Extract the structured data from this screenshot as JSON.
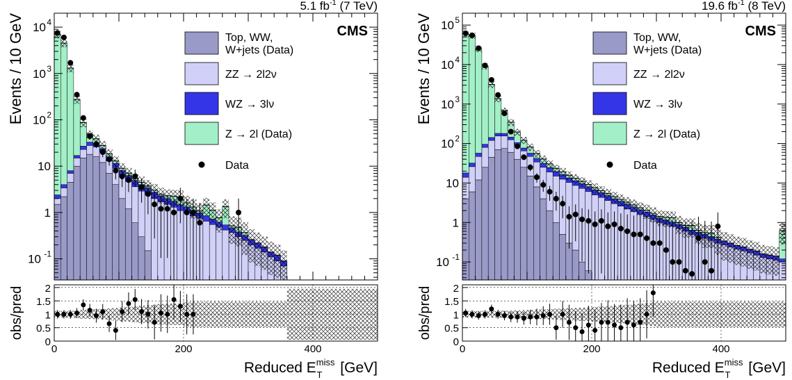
{
  "colors": {
    "top_ww_wjets": "#9a9ac8",
    "zz": "#d0d0f8",
    "wz": "#3535e8",
    "z_2l": "#a3f0c8",
    "data": "#000000",
    "uncertainty_hatch": "#000000"
  },
  "chart_data": [
    {
      "type": "bar",
      "stacked": true,
      "log_y": true,
      "header": "5.1 fb",
      "header_sup": "-1",
      "header_tail": " (7 TeV)",
      "label": "CMS",
      "ylabel": "Events / 10 GeV",
      "xlabel_main": "Reduced E",
      "xlabel_sup": "miss",
      "xlabel_sub": "T",
      "xlabel_unit": " [GeV]",
      "xlim": [
        0,
        500
      ],
      "ylim": [
        0.035,
        20000
      ],
      "yticks": [
        {
          "v": 0.1,
          "base": "10",
          "exp": "-1"
        },
        {
          "v": 1,
          "base": "1",
          "exp": ""
        },
        {
          "v": 10,
          "base": "10",
          "exp": ""
        },
        {
          "v": 100,
          "base": "10",
          "exp": "2"
        },
        {
          "v": 1000,
          "base": "10",
          "exp": "3"
        },
        {
          "v": 10000,
          "base": "10",
          "exp": "4"
        }
      ],
      "xticks": [
        0,
        200,
        400
      ],
      "ratio_ylabel": "obs/pred",
      "ratio_yticks": [
        "0",
        "0.5",
        "1",
        "1.5",
        "2"
      ],
      "ratio_ylim": [
        0,
        2.1
      ],
      "bin_width": 10,
      "series": [
        {
          "name": "Top, WW, W+jets (Data)",
          "key": "top",
          "values": [
            1.5,
            2.2,
            4.5,
            10,
            15,
            18,
            16,
            12,
            7,
            4,
            2,
            1.2,
            0.6,
            0.3,
            0.15,
            0,
            0,
            0,
            0,
            0,
            0,
            0,
            0,
            0,
            0,
            0,
            0,
            0,
            0,
            0,
            0,
            0,
            0,
            0,
            0,
            0,
            0,
            0,
            0,
            0,
            0,
            0,
            0,
            0,
            0,
            0,
            0,
            0,
            0,
            0
          ]
        },
        {
          "name": "ZZ → 2l2ν",
          "key": "zz",
          "values": [
            0.5,
            1.2,
            2.5,
            5,
            8,
            10,
            10,
            8,
            6,
            5,
            4,
            3.5,
            3,
            2.6,
            2.3,
            2,
            1.7,
            1.5,
            1.3,
            1.1,
            1,
            0.85,
            0.75,
            0.65,
            0.55,
            0.48,
            0.42,
            0.37,
            0.3,
            0.25,
            0.2,
            0.17,
            0.14,
            0.11,
            0.09,
            0.07,
            0,
            0,
            0,
            0,
            0,
            0,
            0,
            0,
            0,
            0,
            0,
            0,
            0,
            0,
            0
          ]
        },
        {
          "name": "WZ → 3lν",
          "key": "wz",
          "values": [
            0.4,
            0.6,
            1,
            2,
            4,
            5,
            5,
            4,
            3,
            2.5,
            2,
            1.6,
            1.3,
            1.1,
            0.9,
            0.75,
            0.6,
            0.5,
            0.45,
            0.38,
            0.32,
            0.27,
            0.23,
            0.2,
            0.17,
            0.14,
            0.12,
            0.1,
            0.08,
            0.07,
            0.06,
            0.05,
            0.04,
            0.03,
            0.03,
            0.02,
            0,
            0,
            0,
            0,
            0,
            0,
            0,
            0,
            0,
            0,
            0,
            0,
            0,
            0,
            0
          ]
        },
        {
          "name": "Z → 2l (Data)",
          "key": "z",
          "values": [
            7000,
            4500,
            1300,
            260,
            60,
            15,
            8,
            4,
            2.5,
            1.5,
            1,
            0.8,
            0.6,
            0.5,
            0.4,
            0.3,
            0.2,
            0.3,
            0.5,
            0.7,
            0.3,
            0.2,
            0.1,
            0.6,
            0.4,
            0.15,
            0.8,
            0.05,
            0.1,
            0.05,
            0,
            0,
            0,
            0,
            0,
            0,
            0,
            0,
            0,
            0,
            0,
            0,
            0,
            0,
            0,
            0,
            0,
            0,
            0,
            0,
            0
          ]
        }
      ],
      "data_points": {
        "name": "Data",
        "x": [
          5,
          15,
          25,
          35,
          45,
          55,
          65,
          75,
          85,
          95,
          105,
          115,
          125,
          135,
          145,
          155,
          165,
          175,
          185,
          195,
          205,
          215,
          225,
          235,
          245,
          255,
          265,
          275,
          285
        ],
        "y": [
          7500,
          6000,
          1700,
          350,
          110,
          45,
          30,
          20,
          14,
          8,
          6,
          5,
          6,
          3.5,
          2.5,
          1.5,
          1.2,
          1.2,
          1.0,
          2.0,
          1.0,
          1.0,
          0.6,
          0,
          0,
          0,
          0,
          0,
          1.0
        ],
        "ratio": [
          1.0,
          1.0,
          1.0,
          1.05,
          1.35,
          1.15,
          0.95,
          1.1,
          0.65,
          0.4,
          1.1,
          1.4,
          1.55,
          1.1,
          1.0,
          0.7,
          1.05,
          1.0,
          1.55,
          1.3,
          1.0,
          1.0,
          0,
          0,
          0,
          0,
          0,
          0,
          0
        ]
      },
      "legend": [
        {
          "key": "top",
          "line1": "Top, WW,",
          "line2": "W+jets (Data)"
        },
        {
          "key": "zz",
          "line1": "ZZ → 2l2ν",
          "line2": ""
        },
        {
          "key": "wz",
          "line1": "WZ → 3lν",
          "line2": ""
        },
        {
          "key": "z",
          "line1": "Z → 2l (Data)",
          "line2": ""
        },
        {
          "key": "data",
          "line1": "Data",
          "line2": ""
        }
      ]
    },
    {
      "type": "bar",
      "stacked": true,
      "log_y": true,
      "header": "19.6 fb",
      "header_sup": "-1",
      "header_tail": " (8 TeV)",
      "label": "CMS",
      "ylabel": "Events / 10 GeV",
      "xlabel_main": "Reduced E",
      "xlabel_sup": "miss",
      "xlabel_sub": "T",
      "xlabel_unit": " [GeV]",
      "xlim": [
        0,
        500
      ],
      "ylim": [
        0.035,
        200000
      ],
      "yticks": [
        {
          "v": 0.1,
          "base": "10",
          "exp": "-1"
        },
        {
          "v": 1,
          "base": "1",
          "exp": ""
        },
        {
          "v": 10,
          "base": "10",
          "exp": ""
        },
        {
          "v": 100,
          "base": "10",
          "exp": "2"
        },
        {
          "v": 1000,
          "base": "10",
          "exp": "3"
        },
        {
          "v": 10000,
          "base": "10",
          "exp": "4"
        },
        {
          "v": 100000,
          "base": "10",
          "exp": "5"
        }
      ],
      "xticks": [
        0,
        200,
        400
      ],
      "ratio_ylabel": "obs/pred",
      "ratio_yticks": [
        "0",
        "0.5",
        "1",
        "1.5",
        "2"
      ],
      "ratio_ylim": [
        0,
        2.1
      ],
      "bin_width": 10,
      "series": [
        {
          "name": "Top, WW, W+jets (Data)",
          "key": "top",
          "values": [
            4,
            6,
            12,
            25,
            45,
            70,
            75,
            60,
            40,
            25,
            15,
            8,
            4,
            2,
            1,
            0.5,
            0.3,
            0.2,
            0.1,
            0.06,
            0,
            0,
            0,
            0,
            0,
            0,
            0,
            0,
            0,
            0,
            0,
            0,
            0,
            0,
            0,
            0,
            0,
            0,
            0,
            0,
            0,
            0,
            0,
            0,
            0,
            0,
            0,
            0,
            0,
            0
          ]
        },
        {
          "name": "ZZ → 2l2ν",
          "key": "zz",
          "values": [
            10,
            20,
            35,
            55,
            75,
            85,
            80,
            65,
            50,
            40,
            32,
            26,
            21,
            17,
            14,
            12,
            10,
            8.5,
            7.2,
            6,
            5,
            4.3,
            3.6,
            3,
            2.6,
            2.2,
            1.9,
            1.6,
            1.4,
            1.2,
            1.0,
            0.9,
            0.8,
            0.7,
            0.6,
            0.5,
            0.45,
            0.4,
            0.35,
            0.3,
            0.27,
            0.24,
            0.21,
            0.19,
            0.17,
            0.15,
            0.13,
            0.12,
            0.11,
            0.1
          ]
        },
        {
          "name": "WZ → 3lν",
          "key": "wz",
          "values": [
            4,
            6,
            10,
            16,
            22,
            26,
            25,
            20,
            16,
            12,
            10,
            8,
            6.5,
            5.5,
            4.5,
            3.8,
            3.2,
            2.7,
            2.3,
            2,
            1.7,
            1.4,
            1.2,
            1,
            0.85,
            0.72,
            0.6,
            0.5,
            0.43,
            0.36,
            0.3,
            0.26,
            0.22,
            0.19,
            0.16,
            0.14,
            0.12,
            0.1,
            0.09,
            0.08,
            0.07,
            0.06,
            0.05,
            0.05,
            0.04,
            0.04,
            0.03,
            0.03,
            0.03,
            0.02
          ]
        },
        {
          "name": "Z → 2l (Data)",
          "key": "z",
          "values": [
            60000,
            55000,
            25000,
            9000,
            3000,
            1200,
            500,
            200,
            90,
            45,
            25,
            14,
            9,
            6,
            4,
            3,
            2.2,
            1.8,
            1.4,
            1.1,
            0.9,
            0.7,
            0.6,
            0.5,
            0.4,
            0.35,
            0.3,
            0.25,
            0.2,
            0.15,
            0.12,
            0.2,
            0.3,
            0.1,
            0.08,
            0.2,
            0.06,
            0.05,
            0.1,
            0.04,
            0,
            0,
            0,
            0,
            0,
            0,
            0,
            0,
            0,
            0.5
          ]
        }
      ],
      "data_points": {
        "name": "Data",
        "x": [
          5,
          15,
          25,
          35,
          45,
          55,
          65,
          75,
          85,
          95,
          105,
          115,
          125,
          135,
          145,
          155,
          165,
          175,
          185,
          195,
          205,
          215,
          225,
          235,
          245,
          255,
          265,
          275,
          285,
          295,
          305,
          315,
          325,
          335,
          345,
          355,
          365,
          375,
          385,
          395
        ],
        "y": [
          62000,
          55000,
          26000,
          9500,
          4100,
          1700,
          580,
          200,
          85,
          45,
          25,
          14,
          9,
          6,
          4,
          3,
          1.4,
          1.6,
          1.2,
          1.1,
          0.9,
          1.1,
          0.8,
          0.9,
          0.7,
          0.6,
          0.5,
          0.5,
          0.4,
          0.3,
          0.3,
          0.2,
          0.1,
          0.1,
          0.06,
          0.05,
          0.4,
          0.1,
          0.06,
          0.8
        ],
        "ratio": [
          1.05,
          1.0,
          0.95,
          1.0,
          1.2,
          1.0,
          0.95,
          0.9,
          0.9,
          0.85,
          0.9,
          0.9,
          0.95,
          1.0,
          0.5,
          1.0,
          0.7,
          0.5,
          0.35,
          0.6,
          0.4,
          0.7,
          0.7,
          0.6,
          0.5,
          0.7,
          0.6,
          0.7,
          1.0,
          1.8,
          0,
          0,
          0,
          0,
          0,
          0,
          0,
          0,
          0,
          0
        ]
      },
      "legend": [
        {
          "key": "top",
          "line1": "Top, WW,",
          "line2": "W+jets (Data)"
        },
        {
          "key": "zz",
          "line1": "ZZ → 2l2ν",
          "line2": ""
        },
        {
          "key": "wz",
          "line1": "WZ → 3lν",
          "line2": ""
        },
        {
          "key": "z",
          "line1": "Z → 2l (Data)",
          "line2": ""
        },
        {
          "key": "data",
          "line1": "Data",
          "line2": ""
        }
      ]
    }
  ]
}
